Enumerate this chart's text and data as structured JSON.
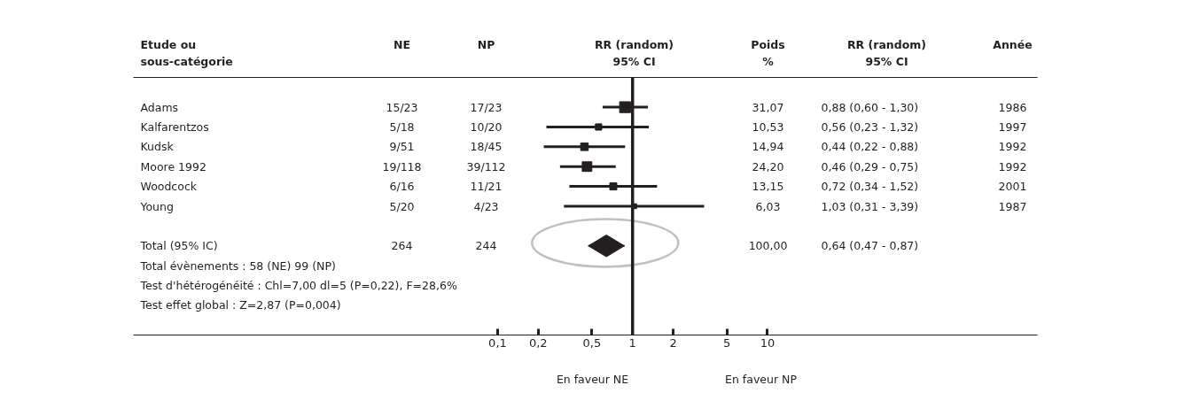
{
  "chart_data": {
    "type": "scatter",
    "orientation": "horizontal",
    "log": "x",
    "title": "RR (random)\n95% CI",
    "ylabel": "Etude ou\nsous-catégorie",
    "categories": [
      null,
      "Adams",
      "Kalfarentzos",
      "Kudsk",
      "Moore 1992",
      "Woodcock",
      "Young",
      null,
      "Total (95% IC)",
      null,
      null,
      null,
      null
    ],
    "series": [
      {
        "color": "#231f20",
        "marker": "square",
        "values": [
          null,
          0.88,
          0.56,
          0.44,
          0.46,
          0.72,
          1.03,
          null,
          null,
          null,
          null,
          null,
          null
        ],
        "errors": [
          null,
          [
            0.6,
            1.3
          ],
          [
            0.23,
            1.32
          ],
          [
            0.22,
            0.88
          ],
          [
            0.29,
            0.75
          ],
          [
            0.34,
            1.52
          ],
          [
            0.31,
            3.39
          ],
          null,
          null,
          null,
          null,
          null,
          null
        ],
        "sizes": [
          null,
          1,
          0.339,
          0.481,
          0.779,
          0.423,
          0.194,
          null,
          null,
          null,
          null,
          null,
          null
        ]
      },
      {
        "color": "#231f20",
        "marker": "diamond",
        "values": [
          null,
          null,
          null,
          null,
          null,
          null,
          null,
          null,
          0.64,
          null,
          null,
          null,
          null
        ],
        "errors": [
          null,
          null,
          null,
          null,
          null,
          null,
          null,
          null,
          [
            0.47,
            0.87
          ],
          null,
          null,
          null,
          null
        ]
      }
    ],
    "xlim": [
      0.0002,
      1000
    ],
    "xticks": [
      {
        "value": 0.1,
        "label": "0,1"
      },
      {
        "value": 0.2,
        "label": "0,2"
      },
      {
        "value": 0.5,
        "label": "0,5"
      },
      1,
      2,
      5,
      10
    ],
    "ref_lines": [
      {
        "axis": "x",
        "value": 1,
        "color": "#231f20"
      }
    ],
    "tick_labels": "x",
    "grid": false,
    "annotations": [
      "NE",
      "NP",
      "Poids\n%",
      "RR (random)\n95% CI",
      "Année",
      "Total évènements : 58 (NE) 99 (NP)",
      "Test d'hétérogénéité : Chl=7,00 dl=5 (P=0,22), F=28,6%",
      "Test effet global : Z=2,87 (P=0,004)",
      "En faveur NE",
      "En faveur NP",
      "15/23",
      "17/23",
      "31,07",
      "0,88 (0,60 - 1,30)",
      "1986",
      "5/18",
      "10/20",
      "10,53",
      "0,56 (0,23 - 1,32)",
      "1997",
      "9/51",
      "18/45",
      "14,94",
      "0,44 (0,22 - 0,88)",
      "1992",
      "19/118",
      "39/112",
      "24,20",
      "0,46 (0,29 - 0,75)",
      "1992",
      "6/16",
      "11/21",
      "13,15",
      "0,72 (0,34 - 1,52)",
      "2001",
      "5/20",
      "4/23",
      "6,03",
      "1,03 (0,31 - 3,39)",
      "1987",
      "264",
      "244",
      "100,00",
      "0,64 (0,47 - 0,87)"
    ]
  }
}
